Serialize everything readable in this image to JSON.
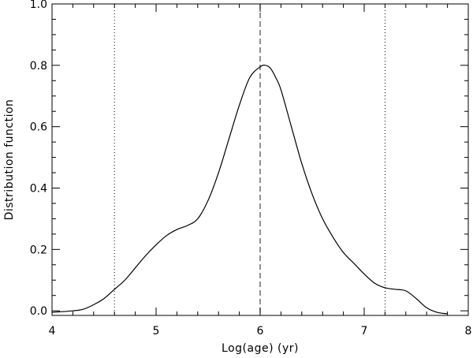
{
  "chart_data": {
    "type": "line",
    "title": "",
    "xlabel": "Log(age) (yr)",
    "ylabel": "Distribution function",
    "xlim": [
      4,
      8
    ],
    "ylim": [
      -0.015,
      1.0
    ],
    "x_ticks": [
      4,
      5,
      6,
      7,
      8
    ],
    "y_ticks": [
      0.0,
      0.2,
      0.4,
      0.6,
      0.8,
      1.0
    ],
    "x_tick_labels": [
      "4",
      "5",
      "6",
      "7",
      "8"
    ],
    "y_tick_labels": [
      "0.0",
      "0.2",
      "0.4",
      "0.6",
      "0.8",
      "1.0"
    ],
    "grid": false,
    "line_color": "#000000",
    "series": [
      {
        "x": [
          4.0,
          4.2,
          4.3,
          4.4,
          4.5,
          4.6,
          4.7,
          4.8,
          4.9,
          5.0,
          5.1,
          5.2,
          5.3,
          5.4,
          5.5,
          5.6,
          5.7,
          5.8,
          5.9,
          6.0,
          6.05,
          6.1,
          6.15,
          6.2,
          6.3,
          6.4,
          6.5,
          6.6,
          6.7,
          6.8,
          6.9,
          7.0,
          7.1,
          7.2,
          7.3,
          7.4,
          7.5,
          7.6,
          7.7,
          7.8
        ],
        "y": [
          -0.005,
          0.0,
          0.005,
          0.02,
          0.04,
          0.07,
          0.1,
          0.14,
          0.18,
          0.215,
          0.245,
          0.265,
          0.278,
          0.3,
          0.36,
          0.45,
          0.56,
          0.67,
          0.76,
          0.795,
          0.8,
          0.79,
          0.76,
          0.72,
          0.6,
          0.48,
          0.38,
          0.3,
          0.24,
          0.19,
          0.155,
          0.12,
          0.09,
          0.075,
          0.07,
          0.065,
          0.04,
          0.01,
          -0.005,
          -0.01
        ]
      }
    ],
    "reference_lines": [
      {
        "x": 4.6,
        "style": "dotted"
      },
      {
        "x": 6.0,
        "style": "dashed"
      },
      {
        "x": 7.2,
        "style": "dotted"
      }
    ]
  }
}
